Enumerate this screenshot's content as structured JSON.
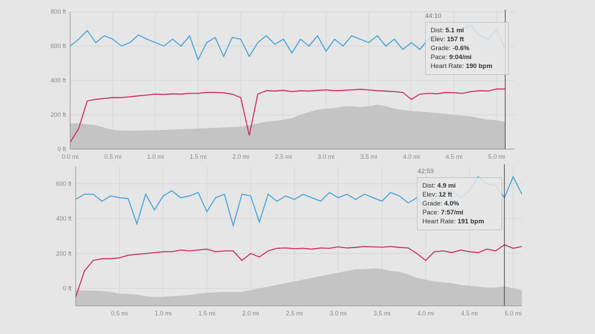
{
  "chart_data": [
    {
      "type": "line",
      "ylim": [
        0,
        800
      ],
      "xlim": [
        0,
        5.2
      ],
      "yticks": [
        "0 ft",
        "200 ft",
        "400 ft",
        "600 ft",
        "800 ft"
      ],
      "ytick_values": [
        0,
        200,
        400,
        600,
        800
      ],
      "xticks": [
        "0.0 mi",
        "0.5 mi",
        "1.0 mi",
        "1.5 mi",
        "2.0 mi",
        "2.5 mi",
        "3.0 mi",
        "3.5 mi",
        "4.0 mi",
        "4.5 mi",
        "5.0 mi"
      ],
      "xtick_values": [
        0,
        0.5,
        1,
        1.5,
        2,
        2.5,
        3,
        3.5,
        4,
        4.5,
        5
      ],
      "x": [
        0,
        0.1,
        0.2,
        0.3,
        0.4,
        0.5,
        0.6,
        0.7,
        0.8,
        0.9,
        1.0,
        1.1,
        1.2,
        1.3,
        1.4,
        1.5,
        1.6,
        1.7,
        1.8,
        1.9,
        2.0,
        2.1,
        2.2,
        2.3,
        2.4,
        2.5,
        2.6,
        2.7,
        2.8,
        2.9,
        3.0,
        3.1,
        3.2,
        3.3,
        3.4,
        3.5,
        3.6,
        3.7,
        3.8,
        3.9,
        4.0,
        4.1,
        4.2,
        4.3,
        4.4,
        4.5,
        4.6,
        4.7,
        4.8,
        4.9,
        5.0,
        5.1
      ],
      "series": [
        {
          "key": "pace",
          "color": "#3a9fd6",
          "values": [
            600,
            640,
            690,
            620,
            660,
            640,
            600,
            620,
            665,
            640,
            620,
            600,
            640,
            600,
            660,
            520,
            620,
            650,
            540,
            650,
            640,
            540,
            620,
            660,
            610,
            640,
            560,
            640,
            600,
            660,
            570,
            640,
            600,
            660,
            640,
            620,
            660,
            600,
            640,
            580,
            620,
            580,
            640,
            660,
            600,
            640,
            700,
            720,
            660,
            640,
            700,
            580
          ]
        },
        {
          "key": "heart_rate",
          "color": "#cc1f55",
          "values": [
            40,
            120,
            280,
            290,
            295,
            300,
            300,
            305,
            310,
            315,
            320,
            318,
            322,
            320,
            325,
            325,
            330,
            330,
            328,
            320,
            300,
            80,
            320,
            340,
            338,
            342,
            335,
            340,
            338,
            342,
            345,
            340,
            342,
            345,
            348,
            345,
            340,
            338,
            335,
            330,
            290,
            320,
            325,
            322,
            330,
            328,
            325,
            335,
            340,
            338,
            350,
            350
          ]
        },
        {
          "key": "elevation",
          "color": "#c4c4c4",
          "area": true,
          "values": [
            150,
            150,
            145,
            140,
            125,
            112,
            108,
            108,
            108,
            110,
            110,
            112,
            114,
            116,
            118,
            120,
            122,
            124,
            126,
            128,
            130,
            140,
            150,
            160,
            165,
            170,
            180,
            200,
            215,
            230,
            235,
            240,
            248,
            250,
            245,
            250,
            258,
            250,
            235,
            228,
            222,
            218,
            215,
            210,
            205,
            200,
            195,
            190,
            180,
            172,
            168,
            157
          ]
        }
      ],
      "cursor": {
        "x": 5.1,
        "time": "44:10",
        "dist": "5.1 mi",
        "elev": "157 ft",
        "grade": "-0.6%",
        "pace": "9:04/mi",
        "hr": "190 bpm"
      }
    },
    {
      "type": "line",
      "ylim": [
        -100,
        700
      ],
      "xlim": [
        0,
        5.1
      ],
      "yticks": [
        "0 ft",
        "200 ft",
        "400 ft",
        "600 ft"
      ],
      "ytick_values": [
        0,
        200,
        400,
        600
      ],
      "xticks": [
        "0.5 mi",
        "1.0 mi",
        "1.5 mi",
        "2.0 mi",
        "2.5 mi",
        "3.0 mi",
        "3.5 mi",
        "4.0 mi",
        "4.5 mi",
        "5.0 mi"
      ],
      "xtick_values": [
        0.5,
        1,
        1.5,
        2,
        2.5,
        3,
        3.5,
        4,
        4.5,
        5
      ],
      "x": [
        0,
        0.1,
        0.2,
        0.3,
        0.4,
        0.5,
        0.6,
        0.7,
        0.8,
        0.9,
        1.0,
        1.1,
        1.2,
        1.3,
        1.4,
        1.5,
        1.6,
        1.7,
        1.8,
        1.9,
        2.0,
        2.1,
        2.2,
        2.3,
        2.4,
        2.5,
        2.6,
        2.7,
        2.8,
        2.9,
        3.0,
        3.1,
        3.2,
        3.3,
        3.4,
        3.5,
        3.6,
        3.7,
        3.8,
        3.9,
        4.0,
        4.1,
        4.2,
        4.3,
        4.4,
        4.5,
        4.6,
        4.7,
        4.8,
        4.9,
        5.0,
        5.1
      ],
      "series": [
        {
          "key": "pace",
          "color": "#3a9fd6",
          "values": [
            510,
            540,
            540,
            500,
            530,
            520,
            515,
            370,
            540,
            450,
            530,
            560,
            520,
            530,
            550,
            440,
            520,
            540,
            360,
            540,
            530,
            380,
            540,
            500,
            530,
            510,
            540,
            520,
            500,
            550,
            520,
            540,
            510,
            540,
            520,
            500,
            550,
            530,
            490,
            520,
            450,
            520,
            540,
            560,
            520,
            560,
            640,
            600,
            590,
            520,
            640,
            540
          ]
        },
        {
          "key": "heart_rate",
          "color": "#cc1f55",
          "values": [
            -50,
            100,
            160,
            170,
            170,
            175,
            190,
            195,
            200,
            205,
            210,
            210,
            220,
            215,
            220,
            225,
            210,
            215,
            215,
            160,
            200,
            180,
            215,
            230,
            232,
            228,
            230,
            225,
            232,
            230,
            238,
            232,
            235,
            240,
            238,
            236,
            240,
            235,
            232,
            200,
            160,
            210,
            215,
            205,
            220,
            210,
            205,
            225,
            215,
            250,
            230,
            240
          ]
        },
        {
          "key": "elevation",
          "color": "#c4c4c4",
          "area": true,
          "values": [
            -10,
            -12,
            -12,
            -15,
            -20,
            -30,
            -32,
            -35,
            -45,
            -50,
            -48,
            -45,
            -42,
            -38,
            -30,
            -25,
            -22,
            -20,
            -20,
            -20,
            -10,
            0,
            10,
            20,
            30,
            40,
            50,
            60,
            70,
            80,
            90,
            100,
            110,
            110,
            115,
            112,
            100,
            95,
            80,
            60,
            50,
            40,
            35,
            30,
            20,
            15,
            10,
            5,
            5,
            12,
            0,
            -10
          ]
        }
      ],
      "cursor": {
        "x": 4.9,
        "time": "42:59",
        "dist": "4.9 mi",
        "elev": "12 ft",
        "grade": "4.0%",
        "pace": "7:57/mi",
        "hr": "191 bpm"
      }
    }
  ],
  "tooltip_labels": {
    "dist": "Dist:",
    "elev": "Elev:",
    "grade": "Grade:",
    "pace": "Pace:",
    "hr": "Heart Rate:"
  }
}
